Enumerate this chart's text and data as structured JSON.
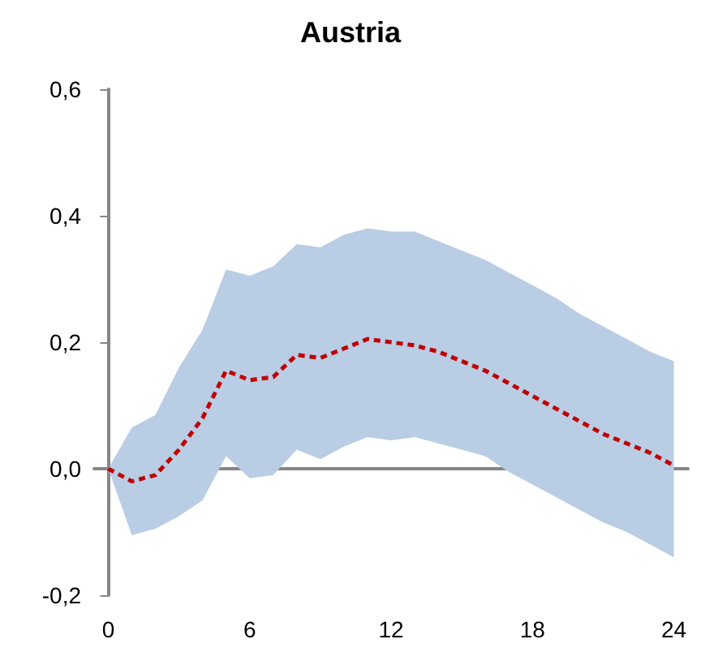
{
  "chart_data": {
    "type": "line",
    "title": "Austria",
    "x": [
      0,
      1,
      2,
      3,
      4,
      5,
      6,
      7,
      8,
      9,
      10,
      11,
      12,
      13,
      14,
      15,
      16,
      17,
      18,
      19,
      20,
      21,
      22,
      23,
      24
    ],
    "series": [
      {
        "color": "#c00000",
        "line_style": "dashed",
        "marker": "none",
        "values": [
          0,
          -0.02,
          -0.01,
          0.03,
          0.08,
          0.155,
          0.14,
          0.145,
          0.18,
          0.175,
          0.19,
          0.205,
          0.2,
          0.195,
          0.185,
          0.17,
          0.155,
          0.135,
          0.115,
          0.095,
          0.075,
          0.055,
          0.04,
          0.025,
          0.005
        ],
        "upper": [
          0,
          0.065,
          0.085,
          0.16,
          0.22,
          0.315,
          0.305,
          0.32,
          0.355,
          0.35,
          0.37,
          0.38,
          0.375,
          0.375,
          0.36,
          0.345,
          0.33,
          0.31,
          0.29,
          0.27,
          0.245,
          0.225,
          0.205,
          0.185,
          0.17
        ],
        "lower": [
          0,
          -0.105,
          -0.095,
          -0.075,
          -0.05,
          0.02,
          -0.015,
          -0.01,
          0.03,
          0.015,
          0.035,
          0.05,
          0.045,
          0.05,
          0.04,
          0.03,
          0.02,
          -0.005,
          -0.025,
          -0.045,
          -0.065,
          -0.085,
          -0.1,
          -0.12,
          -0.14
        ]
      }
    ],
    "xlim": [
      -0.6,
      24.6
    ],
    "xticks": [
      0,
      6,
      12,
      18,
      24
    ],
    "ylim": [
      -0.2,
      0.6
    ],
    "yticks": [
      {
        "value": -0.2,
        "label": "-0,2"
      },
      {
        "value": 0,
        "label": "0,0"
      },
      {
        "value": 0.2,
        "label": "0,2"
      },
      {
        "value": 0.4,
        "label": "0,4"
      },
      {
        "value": 0.6,
        "label": "0,6"
      }
    ],
    "tick_labels": "xy"
  }
}
